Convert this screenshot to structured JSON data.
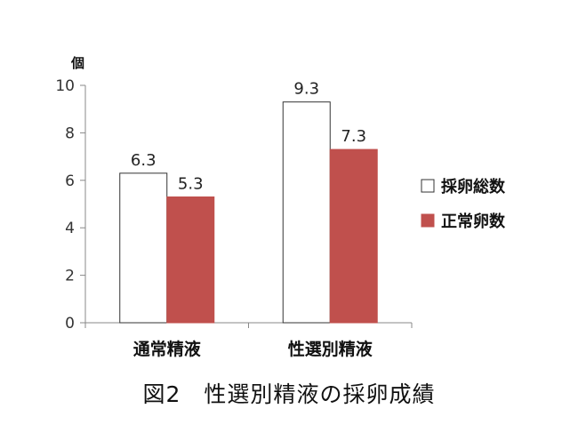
{
  "chart_data": {
    "type": "bar",
    "categories": [
      "通常精液",
      "性選別精液"
    ],
    "series": [
      {
        "name": "採卵総数",
        "values": [
          6.3,
          9.3
        ],
        "color": "#ffffff",
        "stroke": "#333333"
      },
      {
        "name": "正常卵数",
        "values": [
          5.3,
          7.3
        ],
        "color": "#c0504d",
        "stroke": "#c0504d"
      }
    ],
    "data_labels": [
      [
        "6.3",
        "9.3"
      ],
      [
        "5.3",
        "7.3"
      ]
    ],
    "ylabel": "個",
    "ylim": [
      0,
      10
    ],
    "yticks": [
      0,
      2,
      4,
      6,
      8,
      10
    ],
    "grid": false,
    "legend_position": "right"
  },
  "caption": "図2　性選別精液の採卵成績"
}
